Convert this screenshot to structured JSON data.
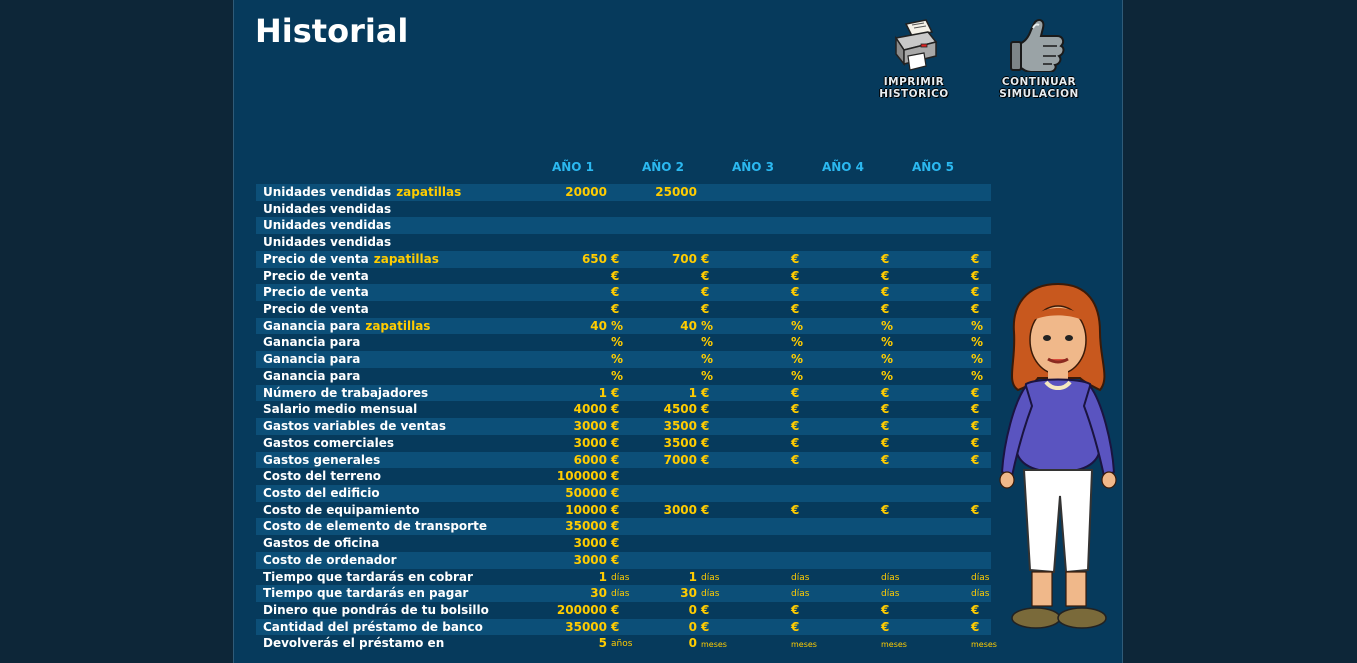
{
  "title": "Historial",
  "actions": {
    "print": {
      "line1": "IMPRIMIR",
      "line2": "HISTORICO",
      "icon": "printer-icon"
    },
    "continue": {
      "line1": "CONTINUAR",
      "line2": "SIMULACION",
      "icon": "thumbs-up-icon"
    }
  },
  "years": [
    "AÑO 1",
    "AÑO 2",
    "AÑO 3",
    "AÑO 4",
    "AÑO 5"
  ],
  "rows": [
    {
      "label": "Unidades vendidas",
      "product": "zapatillas",
      "cells": [
        {
          "v": "20000",
          "u": ""
        },
        {
          "v": "25000",
          "u": ""
        },
        {
          "v": "",
          "u": ""
        },
        {
          "v": "",
          "u": ""
        },
        {
          "v": "",
          "u": ""
        }
      ]
    },
    {
      "label": "Unidades vendidas",
      "product": "",
      "cells": [
        {
          "v": "",
          "u": ""
        },
        {
          "v": "",
          "u": ""
        },
        {
          "v": "",
          "u": ""
        },
        {
          "v": "",
          "u": ""
        },
        {
          "v": "",
          "u": ""
        }
      ]
    },
    {
      "label": "Unidades vendidas",
      "product": "",
      "cells": [
        {
          "v": "",
          "u": ""
        },
        {
          "v": "",
          "u": ""
        },
        {
          "v": "",
          "u": ""
        },
        {
          "v": "",
          "u": ""
        },
        {
          "v": "",
          "u": ""
        }
      ]
    },
    {
      "label": "Unidades vendidas",
      "product": "",
      "cells": [
        {
          "v": "",
          "u": ""
        },
        {
          "v": "",
          "u": ""
        },
        {
          "v": "",
          "u": ""
        },
        {
          "v": "",
          "u": ""
        },
        {
          "v": "",
          "u": ""
        }
      ]
    },
    {
      "label": "Precio de venta",
      "product": "zapatillas",
      "cells": [
        {
          "v": "650",
          "u": "€"
        },
        {
          "v": "700",
          "u": "€"
        },
        {
          "v": "",
          "u": "€"
        },
        {
          "v": "",
          "u": "€"
        },
        {
          "v": "",
          "u": "€"
        }
      ]
    },
    {
      "label": "Precio de venta",
      "product": "",
      "cells": [
        {
          "v": "",
          "u": "€"
        },
        {
          "v": "",
          "u": "€"
        },
        {
          "v": "",
          "u": "€"
        },
        {
          "v": "",
          "u": "€"
        },
        {
          "v": "",
          "u": "€"
        }
      ]
    },
    {
      "label": "Precio de venta",
      "product": "",
      "cells": [
        {
          "v": "",
          "u": "€"
        },
        {
          "v": "",
          "u": "€"
        },
        {
          "v": "",
          "u": "€"
        },
        {
          "v": "",
          "u": "€"
        },
        {
          "v": "",
          "u": "€"
        }
      ]
    },
    {
      "label": "Precio de venta",
      "product": "",
      "cells": [
        {
          "v": "",
          "u": "€"
        },
        {
          "v": "",
          "u": "€"
        },
        {
          "v": "",
          "u": "€"
        },
        {
          "v": "",
          "u": "€"
        },
        {
          "v": "",
          "u": "€"
        }
      ]
    },
    {
      "label": "Ganancia para",
      "product": "zapatillas",
      "cells": [
        {
          "v": "40",
          "u": "%"
        },
        {
          "v": "40",
          "u": "%"
        },
        {
          "v": "",
          "u": "%"
        },
        {
          "v": "",
          "u": "%"
        },
        {
          "v": "",
          "u": "%"
        }
      ]
    },
    {
      "label": "Ganancia para",
      "product": "",
      "cells": [
        {
          "v": "",
          "u": "%"
        },
        {
          "v": "",
          "u": "%"
        },
        {
          "v": "",
          "u": "%"
        },
        {
          "v": "",
          "u": "%"
        },
        {
          "v": "",
          "u": "%"
        }
      ]
    },
    {
      "label": "Ganancia para",
      "product": "",
      "cells": [
        {
          "v": "",
          "u": "%"
        },
        {
          "v": "",
          "u": "%"
        },
        {
          "v": "",
          "u": "%"
        },
        {
          "v": "",
          "u": "%"
        },
        {
          "v": "",
          "u": "%"
        }
      ]
    },
    {
      "label": "Ganancia para",
      "product": "",
      "cells": [
        {
          "v": "",
          "u": "%"
        },
        {
          "v": "",
          "u": "%"
        },
        {
          "v": "",
          "u": "%"
        },
        {
          "v": "",
          "u": "%"
        },
        {
          "v": "",
          "u": "%"
        }
      ]
    },
    {
      "label": "Número de trabajadores",
      "product": "",
      "cells": [
        {
          "v": "1",
          "u": "€"
        },
        {
          "v": "1",
          "u": "€"
        },
        {
          "v": "",
          "u": "€"
        },
        {
          "v": "",
          "u": "€"
        },
        {
          "v": "",
          "u": "€"
        }
      ]
    },
    {
      "label": "Salario medio mensual",
      "product": "",
      "cells": [
        {
          "v": "4000",
          "u": "€"
        },
        {
          "v": "4500",
          "u": "€"
        },
        {
          "v": "",
          "u": "€"
        },
        {
          "v": "",
          "u": "€"
        },
        {
          "v": "",
          "u": "€"
        }
      ]
    },
    {
      "label": "Gastos variables de ventas",
      "product": "",
      "cells": [
        {
          "v": "3000",
          "u": "€"
        },
        {
          "v": "3500",
          "u": "€"
        },
        {
          "v": "",
          "u": "€"
        },
        {
          "v": "",
          "u": "€"
        },
        {
          "v": "",
          "u": "€"
        }
      ]
    },
    {
      "label": "Gastos comerciales",
      "product": "",
      "cells": [
        {
          "v": "3000",
          "u": "€"
        },
        {
          "v": "3500",
          "u": "€"
        },
        {
          "v": "",
          "u": "€"
        },
        {
          "v": "",
          "u": "€"
        },
        {
          "v": "",
          "u": "€"
        }
      ]
    },
    {
      "label": "Gastos generales",
      "product": "",
      "cells": [
        {
          "v": "6000",
          "u": "€"
        },
        {
          "v": "7000",
          "u": "€"
        },
        {
          "v": "",
          "u": "€"
        },
        {
          "v": "",
          "u": "€"
        },
        {
          "v": "",
          "u": "€"
        }
      ]
    },
    {
      "label": "Costo del terreno",
      "product": "",
      "cells": [
        {
          "v": "100000",
          "u": "€"
        },
        {
          "v": "",
          "u": ""
        },
        {
          "v": "",
          "u": ""
        },
        {
          "v": "",
          "u": ""
        },
        {
          "v": "",
          "u": ""
        }
      ]
    },
    {
      "label": "Costo del edificio",
      "product": "",
      "cells": [
        {
          "v": "50000",
          "u": "€"
        },
        {
          "v": "",
          "u": ""
        },
        {
          "v": "",
          "u": ""
        },
        {
          "v": "",
          "u": ""
        },
        {
          "v": "",
          "u": ""
        }
      ]
    },
    {
      "label": "Costo de equipamiento",
      "product": "",
      "cells": [
        {
          "v": "10000",
          "u": "€"
        },
        {
          "v": "3000",
          "u": "€"
        },
        {
          "v": "",
          "u": "€"
        },
        {
          "v": "",
          "u": "€"
        },
        {
          "v": "",
          "u": "€"
        }
      ]
    },
    {
      "label": "Costo de elemento de transporte",
      "product": "",
      "cells": [
        {
          "v": "35000",
          "u": "€"
        },
        {
          "v": "",
          "u": ""
        },
        {
          "v": "",
          "u": ""
        },
        {
          "v": "",
          "u": ""
        },
        {
          "v": "",
          "u": ""
        }
      ]
    },
    {
      "label": "Gastos de oficina",
      "product": "",
      "cells": [
        {
          "v": "3000",
          "u": "€"
        },
        {
          "v": "",
          "u": ""
        },
        {
          "v": "",
          "u": ""
        },
        {
          "v": "",
          "u": ""
        },
        {
          "v": "",
          "u": ""
        }
      ]
    },
    {
      "label": "Costo de ordenador",
      "product": "",
      "cells": [
        {
          "v": "3000",
          "u": "€"
        },
        {
          "v": "",
          "u": ""
        },
        {
          "v": "",
          "u": ""
        },
        {
          "v": "",
          "u": ""
        },
        {
          "v": "",
          "u": ""
        }
      ]
    },
    {
      "label": "Tiempo que tardarás en cobrar",
      "product": "",
      "cells": [
        {
          "v": "1",
          "u": "días",
          "s": "small"
        },
        {
          "v": "1",
          "u": "días",
          "s": "small"
        },
        {
          "v": "",
          "u": "días",
          "s": "small"
        },
        {
          "v": "",
          "u": "días",
          "s": "small"
        },
        {
          "v": "",
          "u": "días",
          "s": "small"
        }
      ]
    },
    {
      "label": "Tiempo que tardarás en pagar",
      "product": "",
      "cells": [
        {
          "v": "30",
          "u": "días",
          "s": "small"
        },
        {
          "v": "30",
          "u": "días",
          "s": "small"
        },
        {
          "v": "",
          "u": "días",
          "s": "small"
        },
        {
          "v": "",
          "u": "días",
          "s": "small"
        },
        {
          "v": "",
          "u": "días",
          "s": "small"
        }
      ]
    },
    {
      "label": "Dinero que pondrás de tu bolsillo",
      "product": "",
      "cells": [
        {
          "v": "200000",
          "u": "€"
        },
        {
          "v": "0",
          "u": "€"
        },
        {
          "v": "",
          "u": "€"
        },
        {
          "v": "",
          "u": "€"
        },
        {
          "v": "",
          "u": "€"
        }
      ]
    },
    {
      "label": "Cantidad del préstamo de banco",
      "product": "",
      "cells": [
        {
          "v": "35000",
          "u": "€"
        },
        {
          "v": "0",
          "u": "€"
        },
        {
          "v": "",
          "u": "€"
        },
        {
          "v": "",
          "u": "€"
        },
        {
          "v": "",
          "u": "€"
        }
      ]
    },
    {
      "label": "Devolverás el préstamo en",
      "product": "",
      "cells": [
        {
          "v": "5",
          "u": "años",
          "s": "small"
        },
        {
          "v": "0",
          "u": "meses",
          "s": "tiny"
        },
        {
          "v": "",
          "u": "meses",
          "s": "tiny"
        },
        {
          "v": "",
          "u": "meses",
          "s": "tiny"
        },
        {
          "v": "",
          "u": "meses",
          "s": "tiny"
        }
      ]
    }
  ],
  "character": {
    "icon": "advisor-character-icon"
  }
}
